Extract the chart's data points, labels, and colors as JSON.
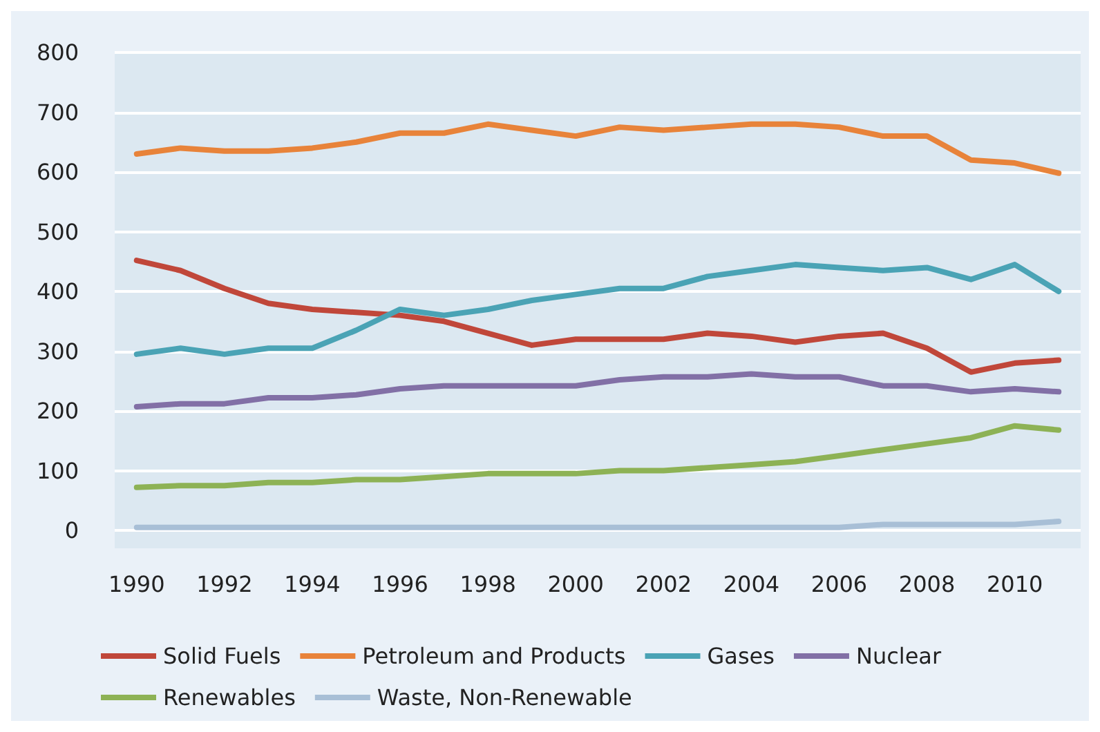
{
  "chart_data": {
    "type": "line",
    "x": [
      1990,
      1991,
      1992,
      1993,
      1994,
      1995,
      1996,
      1997,
      1998,
      1999,
      2000,
      2001,
      2002,
      2003,
      2004,
      2005,
      2006,
      2007,
      2008,
      2009,
      2010,
      2011
    ],
    "xlim": [
      1989.5,
      2011.5
    ],
    "xticks": [
      1990,
      1992,
      1994,
      1996,
      1998,
      2000,
      2002,
      2004,
      2006,
      2008,
      2010
    ],
    "ylim": [
      -30,
      800
    ],
    "yticks": [
      0,
      100,
      200,
      300,
      400,
      500,
      600,
      700,
      800
    ],
    "grid": "y",
    "legend": "bottom",
    "marker": "none",
    "line_style": "solid",
    "series": [
      {
        "name": "Solid Fuels",
        "color": "#c0473a",
        "values": [
          452,
          435,
          405,
          380,
          370,
          365,
          360,
          350,
          330,
          310,
          320,
          320,
          320,
          330,
          325,
          315,
          325,
          330,
          305,
          265,
          280,
          285
        ]
      },
      {
        "name": "Petroleum and Products",
        "color": "#e8833a",
        "values": [
          630,
          640,
          635,
          635,
          640,
          650,
          665,
          665,
          680,
          670,
          660,
          675,
          670,
          675,
          680,
          680,
          675,
          660,
          660,
          620,
          615,
          598
        ]
      },
      {
        "name": "Gases",
        "color": "#4aa3b5",
        "values": [
          295,
          305,
          295,
          305,
          305,
          335,
          370,
          360,
          370,
          385,
          395,
          405,
          405,
          425,
          435,
          445,
          440,
          435,
          440,
          420,
          445,
          400
        ]
      },
      {
        "name": "Nuclear",
        "color": "#8270a6",
        "values": [
          207,
          212,
          212,
          222,
          222,
          227,
          237,
          242,
          242,
          242,
          242,
          252,
          257,
          257,
          262,
          257,
          257,
          242,
          242,
          232,
          237,
          232
        ]
      },
      {
        "name": "Renewables",
        "color": "#8db255",
        "values": [
          72,
          75,
          75,
          80,
          80,
          85,
          85,
          90,
          95,
          95,
          95,
          100,
          100,
          105,
          110,
          115,
          125,
          135,
          145,
          155,
          175,
          168
        ]
      },
      {
        "name": "Waste, Non-Renewable",
        "color": "#a8bfd6",
        "values": [
          5,
          5,
          5,
          5,
          5,
          5,
          5,
          5,
          5,
          5,
          5,
          5,
          5,
          5,
          5,
          5,
          5,
          10,
          10,
          10,
          10,
          15
        ]
      }
    ]
  }
}
